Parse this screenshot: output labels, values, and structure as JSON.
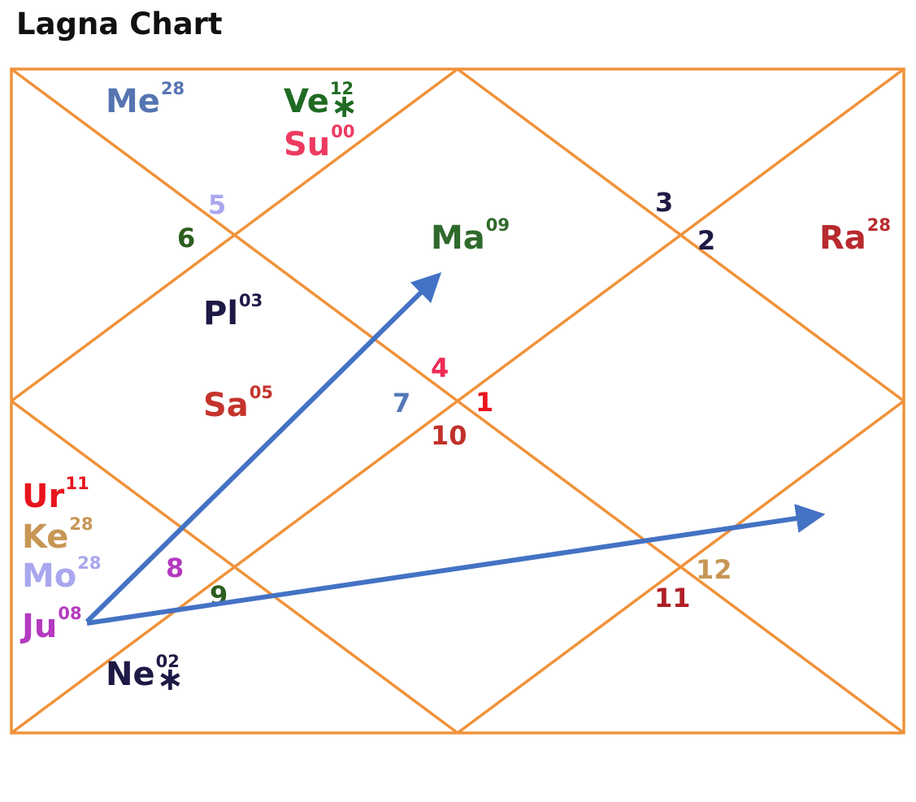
{
  "title": "Lagna Chart",
  "colors": {
    "chart_lines": "#F0923A",
    "arrow": "#4472C4"
  },
  "houses": [
    {
      "number": "1",
      "color": "#E8141E"
    },
    {
      "number": "2",
      "color": "#1E1A46"
    },
    {
      "number": "3",
      "color": "#1E1A46"
    },
    {
      "number": "4",
      "color": "#EE2A55"
    },
    {
      "number": "5",
      "color": "#A9A7EE"
    },
    {
      "number": "6",
      "color": "#2D5E1F"
    },
    {
      "number": "7",
      "color": "#5578B8"
    },
    {
      "number": "8",
      "color": "#B43ABF"
    },
    {
      "number": "9",
      "color": "#2D5E1F"
    },
    {
      "number": "10",
      "color": "#C0312A"
    },
    {
      "number": "11",
      "color": "#AF2026"
    },
    {
      "number": "12",
      "color": "#C79655"
    }
  ],
  "planets": [
    {
      "abbr": "Me",
      "degree": "28",
      "mark": "",
      "color": "#5574B0"
    },
    {
      "abbr": "Ve",
      "degree": "12",
      "mark": "∗",
      "color": "#1F6B23"
    },
    {
      "abbr": "Su",
      "degree": "00",
      "mark": "",
      "color": "#EE3A60"
    },
    {
      "abbr": "Ma",
      "degree": "09",
      "mark": "",
      "color": "#2F6A2C"
    },
    {
      "abbr": "Ra",
      "degree": "28",
      "mark": "",
      "color": "#B82A2E"
    },
    {
      "abbr": "Pl",
      "degree": "03",
      "mark": "",
      "color": "#1E1A46"
    },
    {
      "abbr": "Sa",
      "degree": "05",
      "mark": "",
      "color": "#C4342C"
    },
    {
      "abbr": "Ur",
      "degree": "11",
      "mark": "",
      "color": "#E8141E"
    },
    {
      "abbr": "Ke",
      "degree": "28",
      "mark": "",
      "color": "#C79655"
    },
    {
      "abbr": "Mo",
      "degree": "28",
      "mark": "",
      "color": "#A9A7EE"
    },
    {
      "abbr": "Ju",
      "degree": "08",
      "mark": "",
      "color": "#B43ABF"
    },
    {
      "abbr": "Ne",
      "degree": "02",
      "mark": "∗",
      "color": "#1E1A46"
    }
  ]
}
